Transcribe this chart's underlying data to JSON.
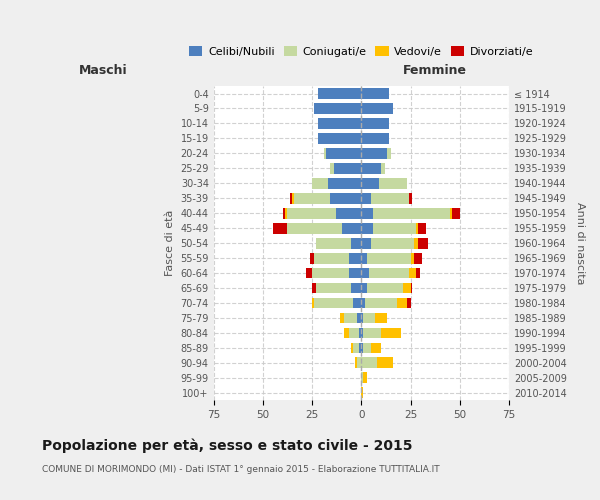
{
  "age_groups": [
    "0-4",
    "5-9",
    "10-14",
    "15-19",
    "20-24",
    "25-29",
    "30-34",
    "35-39",
    "40-44",
    "45-49",
    "50-54",
    "55-59",
    "60-64",
    "65-69",
    "70-74",
    "75-79",
    "80-84",
    "85-89",
    "90-94",
    "95-99",
    "100+"
  ],
  "birth_years": [
    "2010-2014",
    "2005-2009",
    "2000-2004",
    "1995-1999",
    "1990-1994",
    "1985-1989",
    "1980-1984",
    "1975-1979",
    "1970-1974",
    "1965-1969",
    "1960-1964",
    "1955-1959",
    "1950-1954",
    "1945-1949",
    "1940-1944",
    "1935-1939",
    "1930-1934",
    "1925-1929",
    "1920-1924",
    "1915-1919",
    "≤ 1914"
  ],
  "colors": {
    "celibe": "#4d7fbe",
    "coniugato": "#c5d9a0",
    "vedovo": "#ffc000",
    "divorziato": "#cc0000"
  },
  "maschi": {
    "celibe": [
      22,
      24,
      22,
      22,
      18,
      14,
      17,
      16,
      13,
      10,
      5,
      6,
      6,
      5,
      4,
      2,
      1,
      1,
      0,
      0,
      0
    ],
    "coniugato": [
      0,
      0,
      0,
      0,
      1,
      2,
      8,
      18,
      25,
      28,
      18,
      18,
      19,
      18,
      20,
      7,
      5,
      3,
      2,
      0,
      0
    ],
    "vedovo": [
      0,
      0,
      0,
      0,
      0,
      0,
      0,
      1,
      1,
      0,
      0,
      0,
      0,
      0,
      1,
      2,
      3,
      1,
      1,
      0,
      0
    ],
    "divorziato": [
      0,
      0,
      0,
      0,
      0,
      0,
      0,
      1,
      1,
      7,
      0,
      2,
      3,
      2,
      0,
      0,
      0,
      0,
      0,
      0,
      0
    ]
  },
  "femmine": {
    "nubile": [
      14,
      16,
      14,
      14,
      13,
      10,
      9,
      5,
      6,
      6,
      5,
      3,
      4,
      3,
      2,
      1,
      1,
      1,
      0,
      0,
      0
    ],
    "coniugata": [
      0,
      0,
      0,
      0,
      2,
      2,
      14,
      19,
      39,
      22,
      22,
      22,
      20,
      18,
      16,
      6,
      9,
      4,
      8,
      1,
      0
    ],
    "vedova": [
      0,
      0,
      0,
      0,
      0,
      0,
      0,
      0,
      1,
      1,
      2,
      2,
      4,
      4,
      5,
      6,
      10,
      5,
      8,
      2,
      1
    ],
    "divorziata": [
      0,
      0,
      0,
      0,
      0,
      0,
      0,
      2,
      4,
      4,
      5,
      4,
      2,
      1,
      2,
      0,
      0,
      0,
      0,
      0,
      0
    ]
  },
  "xlim": 75,
  "title": "Popolazione per età, sesso e stato civile - 2015",
  "subtitle": "COMUNE DI MORIMONDO (MI) - Dati ISTAT 1° gennaio 2015 - Elaborazione TUTTITALIA.IT",
  "ylabel_left": "Fasce di età",
  "ylabel_right": "Anni di nascita",
  "label_maschi": "Maschi",
  "label_femmine": "Femmine",
  "bg_color": "#efefef",
  "plot_bg": "#ffffff",
  "grid_color": "#cccccc"
}
